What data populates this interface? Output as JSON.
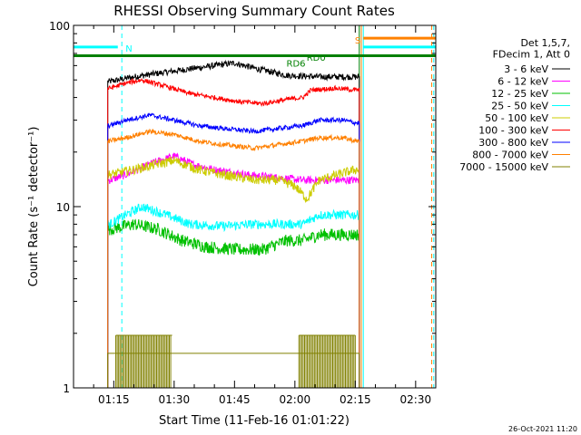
{
  "chart_data": {
    "type": "line",
    "title": "RHESSI Observing Summary Count Rates",
    "xlabel": "Start Time (11-Feb-16 01:01:22)",
    "ylabel": "Count Rate (s⁻¹ detector⁻¹)",
    "yscale": "log",
    "ylim": [
      1,
      100
    ],
    "xlim_minutes": [
      5,
      95
    ],
    "x_tick_labels": [
      {
        "minute": 15,
        "label": "01:15"
      },
      {
        "minute": 30,
        "label": "01:30"
      },
      {
        "minute": 45,
        "label": "01:45"
      },
      {
        "minute": 60,
        "label": "02:00"
      },
      {
        "minute": 75,
        "label": "02:15"
      },
      {
        "minute": 90,
        "label": "02:30"
      }
    ],
    "y_tick_labels": [
      {
        "value": 1,
        "label": "1"
      },
      {
        "value": 10,
        "label": "10"
      },
      {
        "value": 100,
        "label": "100"
      }
    ],
    "legend_title": [
      "Det 1,5,7,",
      "FDecim 1, Att 0"
    ],
    "legend_placement": "right",
    "data_start_minute": 13.5,
    "data_end_minute": 76,
    "series": [
      {
        "name": "3 - 6 keV",
        "color": "#000000",
        "values_by_minute": [
          [
            14,
            49
          ],
          [
            20,
            52
          ],
          [
            30,
            56
          ],
          [
            40,
            60
          ],
          [
            45,
            62
          ],
          [
            50,
            58
          ],
          [
            58,
            53
          ],
          [
            66,
            52
          ],
          [
            72,
            52
          ],
          [
            75,
            52
          ]
        ],
        "noise": 0.04
      },
      {
        "name": "6 - 12 keV",
        "color": "#ff00ff",
        "values_by_minute": [
          [
            14,
            14
          ],
          [
            18,
            15
          ],
          [
            25,
            17.5
          ],
          [
            30,
            19
          ],
          [
            35,
            17
          ],
          [
            40,
            16
          ],
          [
            48,
            15
          ],
          [
            55,
            14.5
          ],
          [
            62,
            14
          ],
          [
            70,
            14
          ],
          [
            75,
            14
          ]
        ],
        "noise": 0.05
      },
      {
        "name": "12 - 25 keV",
        "color": "#00c000",
        "values_by_minute": [
          [
            14,
            7.5
          ],
          [
            20,
            8
          ],
          [
            26,
            7.5
          ],
          [
            32,
            6.5
          ],
          [
            38,
            6
          ],
          [
            45,
            5.8
          ],
          [
            52,
            5.8
          ],
          [
            58,
            6.5
          ],
          [
            62,
            6.5
          ],
          [
            66,
            7
          ],
          [
            75,
            7
          ]
        ],
        "noise": 0.08
      },
      {
        "name": "25 - 50 keV",
        "color": "#00ffff",
        "values_by_minute": [
          [
            14,
            8
          ],
          [
            18,
            9
          ],
          [
            22,
            10
          ],
          [
            28,
            9
          ],
          [
            34,
            8
          ],
          [
            42,
            7.8
          ],
          [
            50,
            8
          ],
          [
            58,
            8
          ],
          [
            62,
            8
          ],
          [
            66,
            9
          ],
          [
            75,
            9
          ]
        ],
        "noise": 0.06
      },
      {
        "name": "50 - 100 keV",
        "color": "#cccc00",
        "values_by_minute": [
          [
            14,
            15
          ],
          [
            20,
            16
          ],
          [
            25,
            17
          ],
          [
            30,
            18
          ],
          [
            36,
            16
          ],
          [
            42,
            15
          ],
          [
            50,
            14
          ],
          [
            56,
            14
          ],
          [
            60,
            13
          ],
          [
            63,
            11
          ],
          [
            66,
            14
          ],
          [
            75,
            16
          ]
        ],
        "noise": 0.06
      },
      {
        "name": "100 - 300 keV",
        "color": "#ff0000",
        "values_by_minute": [
          [
            14,
            45
          ],
          [
            18,
            48
          ],
          [
            22,
            50
          ],
          [
            28,
            46
          ],
          [
            34,
            42
          ],
          [
            40,
            40
          ],
          [
            46,
            38
          ],
          [
            52,
            37
          ],
          [
            58,
            39
          ],
          [
            62,
            40
          ],
          [
            64,
            44
          ],
          [
            70,
            45
          ],
          [
            75,
            44
          ]
        ],
        "noise": 0.03
      },
      {
        "name": "300 - 800 keV",
        "color": "#0000ff",
        "values_by_minute": [
          [
            14,
            28
          ],
          [
            18,
            30
          ],
          [
            24,
            32
          ],
          [
            30,
            30
          ],
          [
            36,
            28
          ],
          [
            42,
            27
          ],
          [
            50,
            26
          ],
          [
            56,
            27
          ],
          [
            62,
            28
          ],
          [
            66,
            30
          ],
          [
            72,
            30
          ],
          [
            75,
            29
          ]
        ],
        "noise": 0.03
      },
      {
        "name": "800 - 7000 keV",
        "color": "#ff8000",
        "values_by_minute": [
          [
            14,
            23
          ],
          [
            18,
            24
          ],
          [
            24,
            26
          ],
          [
            30,
            25
          ],
          [
            36,
            23
          ],
          [
            42,
            22
          ],
          [
            50,
            21
          ],
          [
            56,
            22
          ],
          [
            62,
            23
          ],
          [
            66,
            24
          ],
          [
            72,
            24
          ],
          [
            75,
            23
          ]
        ],
        "noise": 0.03
      },
      {
        "name": "7000 - 15000 keV",
        "color": "#808000",
        "values_by_minute": [
          [
            14,
            1.5
          ],
          [
            76,
            1.5
          ]
        ],
        "noise": 0
      }
    ],
    "annotations": [
      {
        "text": "N",
        "color": "#00ffff",
        "minute": 17,
        "value": 75
      },
      {
        "text": "S",
        "color": "#ff8000",
        "minute": 74,
        "value": 83
      },
      {
        "text": "RD6",
        "color": "#008000",
        "minute": 57,
        "value": 62
      },
      {
        "text": "RD0",
        "color": "#008000",
        "minute": 62,
        "value": 67
      }
    ],
    "bars": [
      {
        "color": "#00ffff",
        "from_minute": 5,
        "to_minute": 16,
        "value": 76
      },
      {
        "color": "#ff8000",
        "from_minute": 77,
        "to_minute": 95,
        "value": 85
      },
      {
        "color": "#00ffff",
        "from_minute": 77,
        "to_minute": 95,
        "value": 76
      },
      {
        "color": "#008000",
        "from_minute": 5,
        "to_minute": 95,
        "value": 68
      }
    ],
    "vertical_markers": [
      {
        "color": "#00ffff",
        "minute": 17,
        "style": "dashed"
      },
      {
        "color": "#00ffff",
        "minute": 77,
        "style": "solid"
      },
      {
        "color": "#ff8000",
        "minute": 76.5,
        "style": "solid"
      },
      {
        "color": "#ff8000",
        "minute": 94,
        "style": "dashed"
      },
      {
        "color": "#00ffff",
        "minute": 94.5,
        "style": "dashed"
      },
      {
        "color": "#008000",
        "minute": 76,
        "style": "solid"
      }
    ],
    "footer_date": "26-Oct-2021 11:20"
  }
}
